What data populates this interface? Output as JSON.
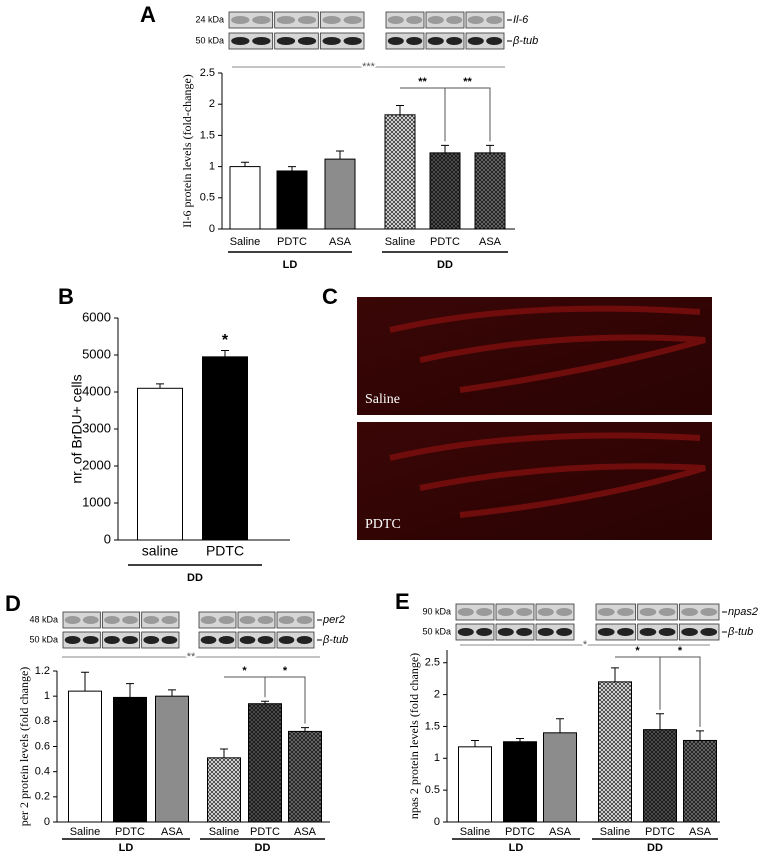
{
  "chart_data": [
    {
      "type": "bar",
      "panel": "A",
      "ylabel": "Il-6 protein levels (fold-change)",
      "categories": [
        "Saline",
        "PDTC",
        "ASA",
        "Saline",
        "PDTC",
        "ASA"
      ],
      "groups": [
        "LD",
        "DD"
      ],
      "values": [
        1.0,
        0.93,
        1.12,
        1.83,
        1.22,
        1.22
      ],
      "errors": [
        0.07,
        0.07,
        0.13,
        0.15,
        0.12,
        0.12
      ],
      "colors": [
        "#ffffff",
        "#000000",
        "#8c8c8c",
        "#e0e0e0",
        "#505050",
        "#6a6a6a"
      ],
      "hatched": [
        false,
        false,
        false,
        true,
        true,
        true
      ],
      "ylim": [
        0,
        2.5
      ],
      "yticks": [
        0,
        0.5,
        1,
        1.5,
        2,
        2.5
      ],
      "annotations": [
        "***",
        "**",
        "**"
      ],
      "blot": [
        {
          "kda": "24 kDa",
          "label": "Il-6"
        },
        {
          "kda": "50 kDa",
          "label": "β-tub"
        }
      ]
    },
    {
      "type": "bar",
      "panel": "B",
      "ylabel": "nr. of BrDU+ cells",
      "categories": [
        "saline",
        "PDTC"
      ],
      "groups": [
        "DD"
      ],
      "values": [
        4100,
        4950
      ],
      "errors": [
        120,
        170
      ],
      "colors": [
        "#ffffff",
        "#000000"
      ],
      "hatched": [
        false,
        false
      ],
      "ylim": [
        0,
        6000
      ],
      "yticks": [
        0,
        1000,
        2000,
        3000,
        4000,
        5000,
        6000
      ],
      "annotations": [
        "*"
      ]
    },
    {
      "type": "bar",
      "panel": "D",
      "ylabel": "per 2 protein levels (fold change)",
      "categories": [
        "Saline",
        "PDTC",
        "ASA",
        "Saline",
        "PDTC",
        "ASA"
      ],
      "groups": [
        "LD",
        "DD"
      ],
      "values": [
        1.04,
        0.99,
        1.0,
        0.51,
        0.94,
        0.72
      ],
      "errors": [
        0.15,
        0.11,
        0.05,
        0.07,
        0.02,
        0.03
      ],
      "colors": [
        "#ffffff",
        "#000000",
        "#8c8c8c",
        "#e0e0e0",
        "#505050",
        "#6a6a6a"
      ],
      "hatched": [
        false,
        false,
        false,
        true,
        true,
        true
      ],
      "ylim": [
        0,
        1.2
      ],
      "yticks": [
        0,
        0.2,
        0.4,
        0.6,
        0.8,
        1,
        1.2
      ],
      "annotations": [
        "**",
        "*",
        "*"
      ],
      "blot": [
        {
          "kda": "48 kDa",
          "label": "per2"
        },
        {
          "kda": "50 kDa",
          "label": "β-tub"
        }
      ]
    },
    {
      "type": "bar",
      "panel": "E",
      "ylabel": "npas 2 protein levels (fold change)",
      "categories": [
        "Saline",
        "PDTC",
        "ASA",
        "Saline",
        "PDTC",
        "ASA"
      ],
      "groups": [
        "LD",
        "DD"
      ],
      "values": [
        1.18,
        1.26,
        1.4,
        2.2,
        1.45,
        1.28
      ],
      "errors": [
        0.1,
        0.05,
        0.22,
        0.22,
        0.25,
        0.15
      ],
      "colors": [
        "#ffffff",
        "#000000",
        "#8c8c8c",
        "#e0e0e0",
        "#505050",
        "#6a6a6a"
      ],
      "hatched": [
        false,
        false,
        false,
        true,
        true,
        true
      ],
      "ylim": [
        0,
        2.7
      ],
      "yticks": [
        0,
        0.5,
        1,
        1.5,
        2,
        2.5
      ],
      "annotations": [
        "*",
        "*",
        "*"
      ],
      "blot": [
        {
          "kda": "90 kDa",
          "label": "npas2"
        },
        {
          "kda": "50 kDa",
          "label": "β-tub"
        }
      ]
    }
  ],
  "panel_c": {
    "panel": "C",
    "labels": [
      "Saline",
      "PDTC"
    ]
  }
}
